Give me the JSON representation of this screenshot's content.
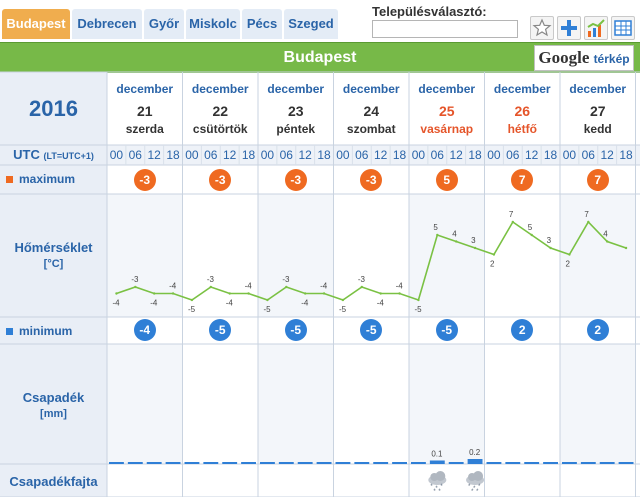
{
  "tabs": [
    {
      "label": "Budapest",
      "active": true
    },
    {
      "label": "Debrecen",
      "active": false
    },
    {
      "label": "Győr",
      "active": false
    },
    {
      "label": "Miskolc",
      "active": false
    },
    {
      "label": "Pécs",
      "active": false
    },
    {
      "label": "Szeged",
      "active": false
    }
  ],
  "location_selector": {
    "label": "Településválasztó:",
    "value": ""
  },
  "toolbar_icons": [
    "star-icon",
    "plus-icon",
    "chart-icon",
    "table-icon"
  ],
  "header": {
    "title": "Budapest",
    "google_button": {
      "brand": "Google",
      "label": "térkép"
    }
  },
  "year": "2016",
  "days": [
    {
      "month": "december",
      "day": "21",
      "weekday": "szerda",
      "weekend": false
    },
    {
      "month": "december",
      "day": "22",
      "weekday": "csütörtök",
      "weekend": false
    },
    {
      "month": "december",
      "day": "23",
      "weekday": "péntek",
      "weekend": false
    },
    {
      "month": "december",
      "day": "24",
      "weekday": "szombat",
      "weekend": false
    },
    {
      "month": "december",
      "day": "25",
      "weekday": "vasárnap",
      "weekend": true
    },
    {
      "month": "december",
      "day": "26",
      "weekday": "hétfő",
      "weekend": true
    },
    {
      "month": "december",
      "day": "27",
      "weekday": "kedd",
      "weekend": false
    }
  ],
  "utc_row": {
    "label": "UTC",
    "note": "(LT=UTC+1)",
    "hours": [
      "00",
      "06",
      "12",
      "18"
    ]
  },
  "maximum": {
    "label": "maximum",
    "values": [
      "-3",
      "-3",
      "-3",
      "-3",
      "5",
      "7",
      "7"
    ]
  },
  "minimum": {
    "label": "minimum",
    "values": [
      "-4",
      "-5",
      "-5",
      "-5",
      "-5",
      "2",
      "2"
    ]
  },
  "temperature": {
    "label": "Hőmérséklet",
    "unit": "[°C]"
  },
  "precipitation": {
    "label": "Csapadék",
    "unit": "[mm]"
  },
  "precip_type": {
    "label": "Csapadékfajta",
    "icons": [
      {
        "slot": 17,
        "name": "snow-cloud-icon"
      },
      {
        "slot": 19,
        "name": "snow-cloud-icon"
      }
    ]
  },
  "colors": {
    "max": "#ef6a21",
    "min": "#2f7fd6",
    "line": "#7ac143",
    "header": "#77b948",
    "accent": "#2a64a8",
    "weekend": "#e5552a"
  },
  "chart_data": {
    "type": "line",
    "series": [
      {
        "values": [
          -4,
          -3,
          -4,
          -4,
          -5,
          -3,
          -4,
          -4,
          -5,
          -3,
          -4,
          -4,
          -5,
          -3,
          -4,
          -4,
          -5,
          5,
          4,
          3,
          2,
          7,
          5,
          3,
          2,
          7,
          4,
          3
        ]
      }
    ],
    "labels": [
      "-4",
      "-3",
      "-4",
      "-4",
      "-5",
      "-3",
      "-4",
      "-4",
      "-5",
      "-3",
      "-4",
      "-4",
      "-5",
      "-3",
      "-4",
      "-4",
      "-5",
      "5",
      "4",
      "3",
      "2",
      "7",
      "5",
      "3",
      "2",
      "7",
      "4",
      ""
    ],
    "precipitation": {
      "type": "bar",
      "values": [
        0,
        0,
        0,
        0,
        0,
        0,
        0,
        0,
        0,
        0,
        0,
        0,
        0,
        0,
        0,
        0,
        0,
        0.1,
        0,
        0.2,
        0,
        0,
        0,
        0,
        0,
        0,
        0,
        0
      ],
      "labels": {
        "17": "0.1",
        "19": "0.2"
      }
    }
  }
}
